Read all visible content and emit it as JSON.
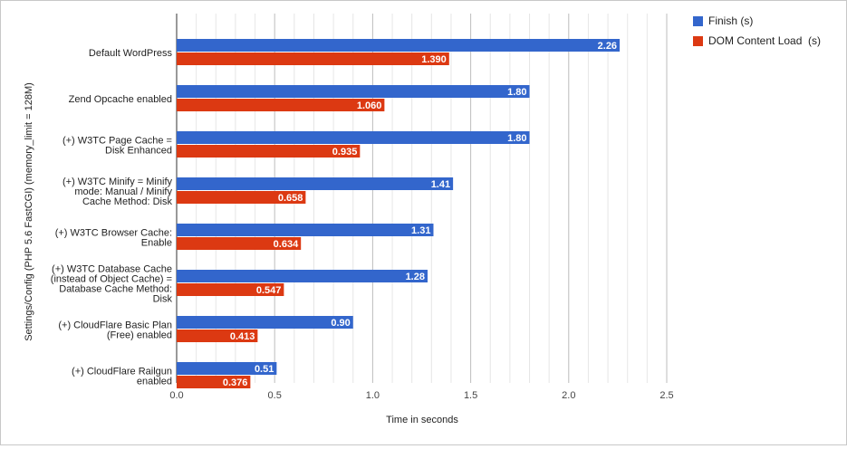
{
  "chart_data": {
    "type": "bar",
    "orientation": "horizontal",
    "title": "",
    "xlabel": "Time in seconds",
    "ylabel": "Settings/Config (PHP 5.6 FastCGI) (memory_limit = 128M)",
    "xlim": [
      0,
      2.5
    ],
    "x_ticks": [
      "0.0",
      "0.5",
      "1.0",
      "1.5",
      "2.0",
      "2.5"
    ],
    "grid": true,
    "legend_position": "right",
    "categories": [
      [
        "Default WordPress"
      ],
      [
        "Zend Opcache enabled"
      ],
      [
        "(+) W3TC Page Cache =",
        "Disk Enhanced"
      ],
      [
        "(+) W3TC Minify = Minify",
        "mode: Manual / Minify",
        "Cache Method: Disk"
      ],
      [
        "(+) W3TC Browser Cache:",
        "Enable"
      ],
      [
        "(+) W3TC Database Cache",
        "(instead of Object Cache) =",
        "Database Cache Method:",
        "Disk"
      ],
      [
        "(+) CloudFlare Basic Plan",
        "(Free) enabled"
      ],
      [
        "(+) CloudFlare Railgun",
        "enabled"
      ]
    ],
    "series": [
      {
        "name": "Finish (s)",
        "color": "#3366cc",
        "values": [
          2.26,
          1.8,
          1.8,
          1.41,
          1.31,
          1.28,
          0.9,
          0.51
        ],
        "labels": [
          "2.26",
          "1.80",
          "1.80",
          "1.41",
          "1.31",
          "1.28",
          "0.90",
          "0.51"
        ]
      },
      {
        "name": "DOM Content Load  (s)",
        "color": "#dc3912",
        "values": [
          1.39,
          1.06,
          0.935,
          0.658,
          0.634,
          0.547,
          0.413,
          0.376
        ],
        "labels": [
          "1.390",
          "1.060",
          "0.935",
          "0.658",
          "0.634",
          "0.547",
          "0.413",
          "0.376"
        ]
      }
    ]
  }
}
